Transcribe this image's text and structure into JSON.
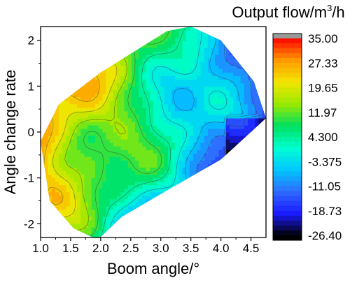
{
  "chart_data": {
    "type": "heatmap",
    "subtype": "filled-contour",
    "xlabel": "Boom angle/°",
    "ylabel": "Angle change rate",
    "xlim": [
      1.0,
      4.75
    ],
    "ylim": [
      -2.3,
      2.3
    ],
    "x_ticks": [
      "1.0",
      "1.5",
      "2.0",
      "2.5",
      "3.0",
      "3.5",
      "4.0",
      "4.5"
    ],
    "y_ticks": [
      "2",
      "1",
      "0",
      "-1",
      "-2"
    ],
    "colorbar": {
      "title_prefix": "Output flow/m",
      "title_sup": "3",
      "title_suffix": "/h",
      "min": -26.4,
      "max": 35.0,
      "labels": [
        "35.00",
        "27.33",
        "19.65",
        "11.97",
        "4.300",
        "-3.375",
        "-11.05",
        "-18.73",
        "-26.40"
      ],
      "colors": [
        "#000000",
        "#1a1aff",
        "#2f6bff",
        "#00c8ff",
        "#00ffd0",
        "#00e060",
        "#9be800",
        "#f2e600",
        "#ff9900",
        "#ff0000",
        "#999999"
      ]
    },
    "region_hull": [
      [
        1.0,
        -0.2
      ],
      [
        1.3,
        0.6
      ],
      [
        2.0,
        1.3
      ],
      [
        3.1,
        2.2
      ],
      [
        3.5,
        2.3
      ],
      [
        4.0,
        2.0
      ],
      [
        4.55,
        1.1
      ],
      [
        4.75,
        0.3
      ],
      [
        4.0,
        -0.6
      ],
      [
        3.2,
        -1.2
      ],
      [
        2.35,
        -1.85
      ],
      [
        1.95,
        -2.35
      ],
      [
        1.55,
        -2.1
      ],
      [
        1.15,
        -1.5
      ]
    ],
    "grid": false,
    "legend": "colorbar-right"
  }
}
